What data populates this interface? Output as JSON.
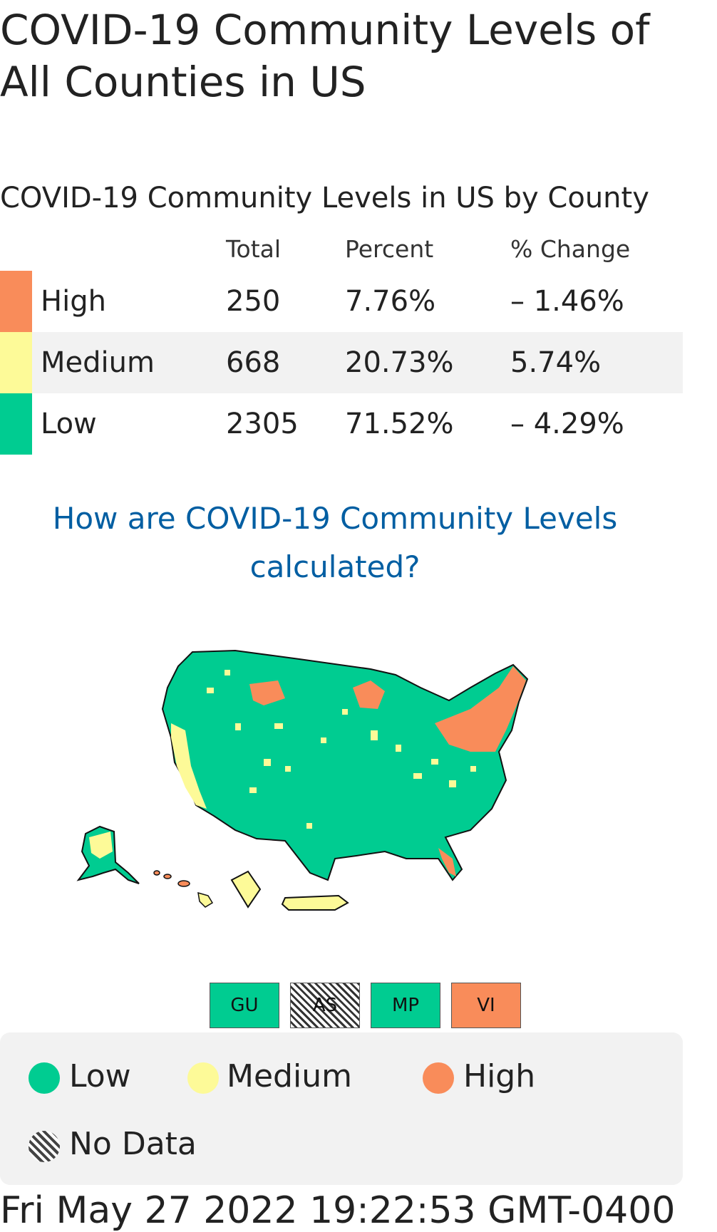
{
  "page": {
    "title": "COVID-19 Community Levels of All Counties in US",
    "subtitle": "COVID-19 Community Levels in US by County",
    "link_text": "How are COVID-19 Community Levels calculated?",
    "timestamp": "Fri May 27 2022 19:22:53 GMT-0400"
  },
  "colors": {
    "high": "#f98c5a",
    "medium": "#fdfa98",
    "low": "#00cc91",
    "link": "#005ea2"
  },
  "table": {
    "headers": {
      "level": "",
      "total": "Total",
      "percent": "Percent",
      "change": "% Change"
    },
    "rows": [
      {
        "label": "High",
        "total": "250",
        "percent": "7.76%",
        "change": "– 1.46%"
      },
      {
        "label": "Medium",
        "total": "668",
        "percent": "20.73%",
        "change": "5.74%"
      },
      {
        "label": "Low",
        "total": "2305",
        "percent": "71.52%",
        "change": "– 4.29%"
      }
    ]
  },
  "territories": [
    {
      "code": "GU",
      "level": "low"
    },
    {
      "code": "AS",
      "level": "no-data"
    },
    {
      "code": "MP",
      "level": "low"
    },
    {
      "code": "VI",
      "level": "high"
    }
  ],
  "legend": {
    "low": "Low",
    "medium": "Medium",
    "high": "High",
    "nodata": "No Data"
  }
}
